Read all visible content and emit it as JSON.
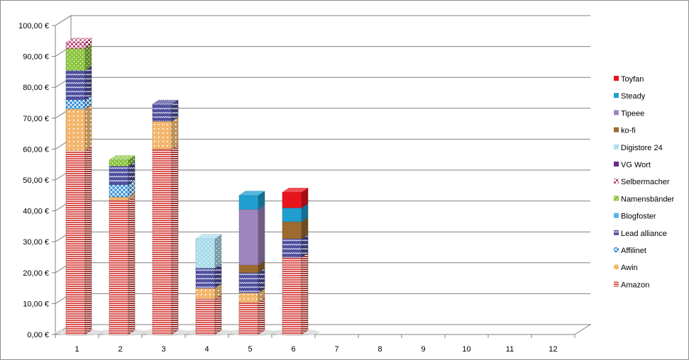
{
  "chart_data": {
    "type": "bar",
    "stacked": true,
    "style": "3d-column",
    "categories": [
      "1",
      "2",
      "3",
      "4",
      "5",
      "6",
      "7",
      "8",
      "9",
      "10",
      "11",
      "12"
    ],
    "y_ticks": [
      "0,00 €",
      "10,00 €",
      "20,00 €",
      "30,00 €",
      "40,00 €",
      "50,00 €",
      "60,00 €",
      "70,00 €",
      "80,00 €",
      "90,00 €",
      "100,00 €"
    ],
    "ylim": [
      0,
      100
    ],
    "grid": true,
    "legend_position": "right",
    "series": [
      {
        "name": "Amazon",
        "color": "#d9534f",
        "pattern": "hlines",
        "values": [
          59.5,
          43.5,
          60,
          11.5,
          10.5,
          25,
          0,
          0,
          0,
          0,
          0,
          0
        ]
      },
      {
        "name": "Awin",
        "color": "#f0a040",
        "pattern": "diag",
        "values": [
          13.5,
          1,
          9,
          3.5,
          3,
          0,
          0,
          0,
          0,
          0,
          0,
          0
        ]
      },
      {
        "name": "Affilinet",
        "color": "#2e8bd6",
        "pattern": "cross",
        "values": [
          3,
          4,
          0,
          0,
          0,
          0,
          0,
          0,
          0,
          0,
          0,
          0
        ]
      },
      {
        "name": "Lead alliance",
        "color": "#4f4f9f",
        "pattern": "zigzag",
        "values": [
          9.5,
          6,
          5.5,
          6.5,
          6.5,
          6,
          0,
          0,
          0,
          0,
          0,
          0
        ]
      },
      {
        "name": "Blogfoster",
        "color": "#5bb3e6",
        "pattern": "solid",
        "values": [
          0,
          0,
          0,
          0,
          0,
          0,
          0,
          0,
          0,
          0,
          0,
          0
        ]
      },
      {
        "name": "Namensbänder",
        "color": "#8cc63f",
        "pattern": "dots",
        "values": [
          7,
          2,
          0,
          0,
          0,
          0,
          0,
          0,
          0,
          0,
          0,
          0
        ]
      },
      {
        "name": "Selbermacher",
        "color": "#c04a7a",
        "pattern": "checker",
        "values": [
          2,
          0,
          0,
          0,
          0,
          0,
          0,
          0,
          0,
          0,
          0,
          0
        ]
      },
      {
        "name": "VG Wort",
        "color": "#6a2c91",
        "pattern": "solid",
        "values": [
          0,
          0,
          0,
          0,
          0,
          0,
          0,
          0,
          0,
          0,
          0,
          0
        ]
      },
      {
        "name": "Digistore 24",
        "color": "#a8dcea",
        "pattern": "dots",
        "values": [
          0,
          0,
          0,
          9.5,
          0,
          0,
          0,
          0,
          0,
          0,
          0,
          0
        ]
      },
      {
        "name": "ko-fi",
        "color": "#9c6b30",
        "pattern": "solid",
        "values": [
          0,
          0,
          0,
          0,
          2.5,
          5.5,
          0,
          0,
          0,
          0,
          0,
          0
        ]
      },
      {
        "name": "Tipeee",
        "color": "#9e85be",
        "pattern": "solid",
        "values": [
          0,
          0,
          0,
          0,
          18,
          0,
          0,
          0,
          0,
          0,
          0,
          0
        ]
      },
      {
        "name": "Steady",
        "color": "#1f9fd0",
        "pattern": "solid",
        "values": [
          0,
          0,
          0,
          0,
          4.5,
          4.5,
          0,
          0,
          0,
          0,
          0,
          0
        ]
      },
      {
        "name": "Toyfan",
        "color": "#e8141c",
        "pattern": "solid",
        "values": [
          0,
          0,
          0,
          0,
          0,
          5,
          0,
          0,
          0,
          0,
          0,
          0
        ]
      }
    ]
  }
}
